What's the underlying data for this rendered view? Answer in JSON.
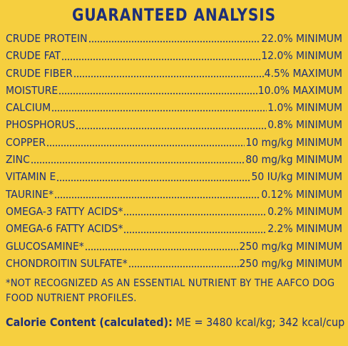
{
  "title": "GUARANTEED ANALYSIS",
  "rows": [
    {
      "name": "CRUDE PROTEIN",
      "value": "22.0% MINIMUM"
    },
    {
      "name": "CRUDE FAT",
      "value": "12.0% MINIMUM"
    },
    {
      "name": "CRUDE FIBER",
      "value": "4.5% MAXIMUM"
    },
    {
      "name": "MOISTURE",
      "value": "10.0% MAXIMUM"
    },
    {
      "name": "CALCIUM",
      "value": "1.0% MINIMUM"
    },
    {
      "name": "PHOSPHORUS",
      "value": "0.8% MINIMUM"
    },
    {
      "name": "COPPER",
      "value": "10 mg/kg MINIMUM"
    },
    {
      "name": "ZINC",
      "value": "80 mg/kg MINIMUM"
    },
    {
      "name": "VITAMIN E",
      "value": "50 IU/kg MINIMUM"
    },
    {
      "name": "TAURINE*",
      "value": "0.12% MINIMUM"
    },
    {
      "name": "OMEGA-3 FATTY ACIDS*",
      "value": "0.2% MINIMUM"
    },
    {
      "name": "OMEGA-6 FATTY ACIDS*",
      "value": "2.2% MINIMUM"
    },
    {
      "name": "GLUCOSAMINE*",
      "value": "250 mg/kg MINIMUM"
    },
    {
      "name": "CHONDROITIN SULFATE*",
      "value": "250 mg/kg MINIMUM"
    }
  ],
  "footnote": "*NOT RECOGNIZED AS AN ESSENTIAL NUTRIENT BY THE AAFCO DOG FOOD NUTRIENT PROFILES.",
  "calorie": {
    "label": "Calorie Content (calculated):",
    "value": " ME = 3480 kcal/kg; 342 kcal/cup"
  },
  "colors": {
    "background": "#f6cf3f",
    "text": "#1d2f7a"
  }
}
